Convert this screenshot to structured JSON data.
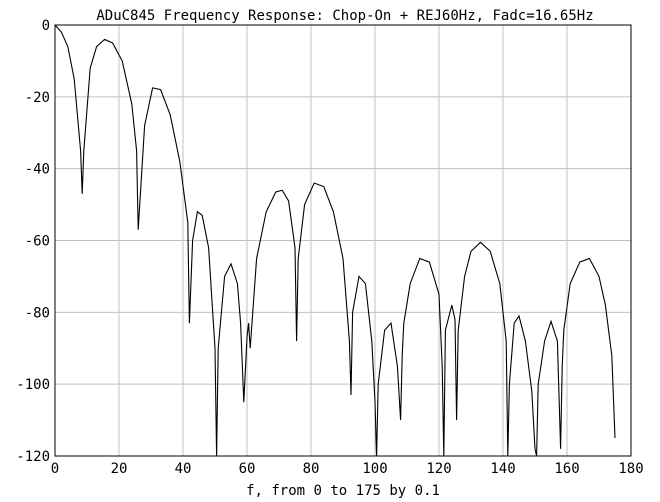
{
  "chart_data": {
    "type": "line",
    "title": "ADuC845 Frequency Response: Chop-On + REJ60Hz, Fadc=16.65Hz",
    "xlabel": "f, from 0 to 175 by 0.1",
    "ylabel": "",
    "xlim": [
      0,
      180
    ],
    "ylim": [
      -120,
      0
    ],
    "x_ticks": [
      0,
      20,
      40,
      60,
      80,
      100,
      120,
      140,
      160,
      180
    ],
    "y_ticks": [
      0,
      -20,
      -40,
      -60,
      -80,
      -100,
      -120
    ],
    "grid": true,
    "legend": "none",
    "line_color": "#000000",
    "grid_color": "#c0c0c0",
    "sample_points": {
      "x": [
        0,
        2,
        4,
        6,
        8,
        8.5,
        9,
        11,
        13,
        15.5,
        18,
        21,
        24,
        25.5,
        26,
        28,
        30.5,
        33,
        36,
        39,
        41.5,
        42,
        43,
        44.5,
        46,
        48,
        50,
        50.5,
        51,
        53,
        55,
        57,
        58,
        59,
        60,
        60.5,
        61,
        63,
        66,
        69,
        71,
        73,
        75,
        75.5,
        76,
        78,
        81,
        84,
        87,
        90,
        92,
        92.5,
        93,
        95,
        97,
        99,
        100,
        100.5,
        101,
        103,
        105,
        107,
        108,
        108.5,
        109,
        111,
        114,
        117,
        120,
        121,
        121.5,
        122,
        124,
        125,
        125.5,
        126,
        128,
        130,
        133,
        136,
        139,
        141,
        141.5,
        142,
        143.5,
        145,
        147,
        149,
        150,
        150.5,
        151,
        153,
        155,
        157,
        158,
        158.5,
        159,
        161,
        164,
        167,
        170,
        172,
        174,
        175
      ],
      "y": [
        0,
        -2,
        -6,
        -15,
        -35,
        -47,
        -35,
        -12,
        -6,
        -4,
        -5,
        -10,
        -22,
        -35,
        -57,
        -28,
        -17.5,
        -18,
        -25,
        -38,
        -55,
        -83,
        -60,
        -52,
        -53,
        -62,
        -90,
        -120,
        -90,
        -70,
        -66.5,
        -72,
        -83,
        -105,
        -87,
        -83,
        -90,
        -65,
        -52,
        -46.5,
        -46,
        -49,
        -62,
        -88,
        -65,
        -50,
        -44,
        -45,
        -52,
        -65,
        -88,
        -103,
        -80,
        -70,
        -72,
        -88,
        -105,
        -120,
        -100,
        -85,
        -83,
        -95,
        -110,
        -92,
        -83,
        -72,
        -65,
        -66,
        -75,
        -95,
        -120,
        -85,
        -78,
        -82,
        -110,
        -85,
        -70,
        -63,
        -60.5,
        -63,
        -72,
        -88,
        -135,
        -100,
        -83,
        -81,
        -88,
        -102,
        -118,
        -125,
        -100,
        -88,
        -82.5,
        -88,
        -118,
        -95,
        -85,
        -72,
        -66,
        -65,
        -70,
        -78,
        -92,
        -115
      ]
    }
  }
}
